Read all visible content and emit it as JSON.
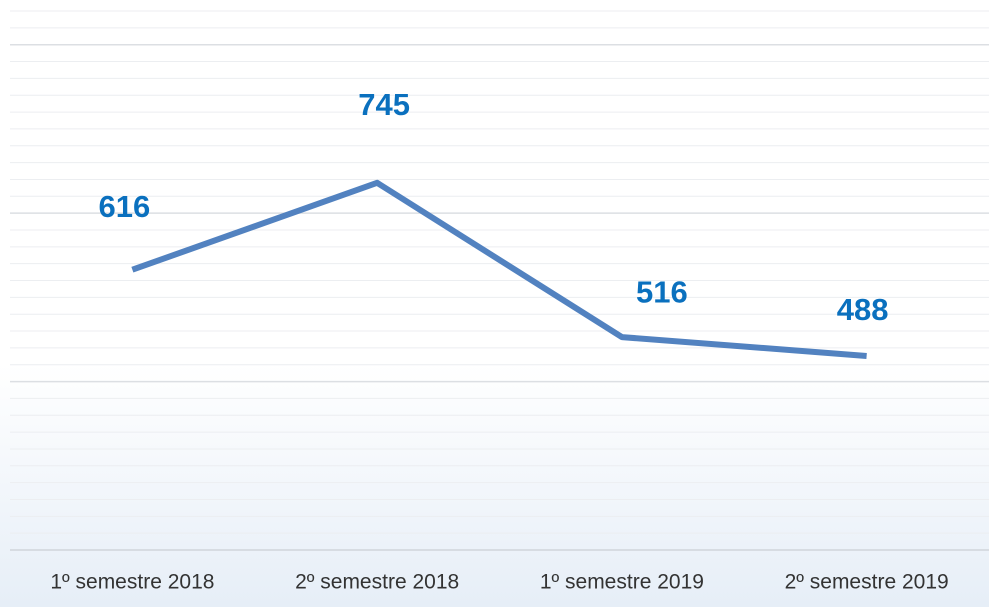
{
  "chart_data": {
    "type": "line",
    "categories": [
      "1º semestre 2018",
      "2º semestre 2018",
      "1º semestre 2019",
      "2º semestre 2019"
    ],
    "series": [
      {
        "name": null,
        "color": "#5282c0",
        "values": [
          616,
          745,
          516,
          488
        ]
      }
    ],
    "ylim": [
      200,
      1000
    ],
    "yticks": [
      200,
      450,
      700,
      950
    ],
    "minor_yticks": [
      225,
      250,
      275,
      300,
      325,
      350,
      375,
      400,
      425,
      475,
      500,
      525,
      550,
      575,
      600,
      625,
      650,
      675,
      725,
      750,
      775,
      800,
      825,
      850,
      875,
      900,
      925,
      975,
      1000
    ],
    "grid": true
  }
}
